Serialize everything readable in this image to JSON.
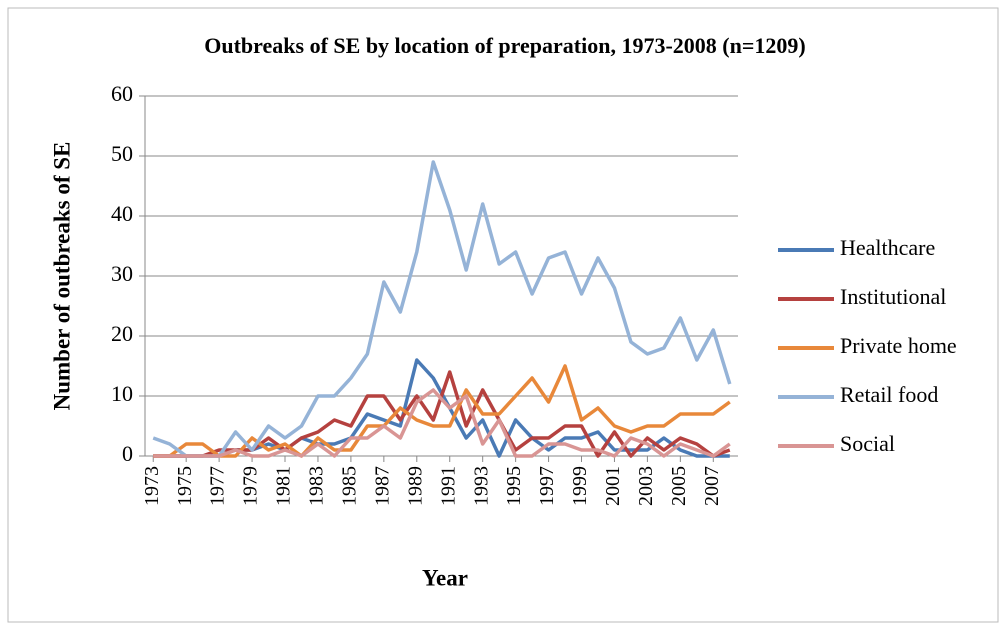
{
  "chart_data": {
    "type": "line",
    "title": "Outbreaks of SE by location of preparation, 1973-2008 (n=1209)",
    "x_label": "Year",
    "y_label": "Number of outbreaks of SE",
    "x": [
      1973,
      1974,
      1975,
      1976,
      1977,
      1978,
      1979,
      1980,
      1981,
      1982,
      1983,
      1984,
      1985,
      1986,
      1987,
      1988,
      1989,
      1990,
      1991,
      1992,
      1993,
      1994,
      1995,
      1996,
      1997,
      1998,
      1999,
      2000,
      2001,
      2002,
      2003,
      2004,
      2005,
      2006,
      2007,
      2008
    ],
    "xlim": [
      1972.5,
      2008.5
    ],
    "xticks": [
      1973,
      1975,
      1977,
      1979,
      1981,
      1983,
      1985,
      1987,
      1989,
      1991,
      1993,
      1995,
      1997,
      1999,
      2001,
      2003,
      2005,
      2007
    ],
    "ylim": [
      0,
      60
    ],
    "yticks": [
      0,
      10,
      20,
      30,
      40,
      50,
      60
    ],
    "grid": true,
    "legend": "right",
    "series": [
      {
        "name": "Healthcare",
        "color": "#4a7ab5",
        "values": [
          0,
          0,
          0,
          0,
          0,
          1,
          1,
          2,
          1,
          3,
          2,
          2,
          3,
          7,
          6,
          5,
          16,
          13,
          8,
          3,
          6,
          0,
          6,
          3,
          1,
          3,
          3,
          4,
          1,
          1,
          1,
          3,
          1,
          0,
          0,
          0
        ]
      },
      {
        "name": "Institutional",
        "color": "#b5413f",
        "values": [
          0,
          0,
          0,
          0,
          1,
          1,
          1,
          3,
          1,
          3,
          4,
          6,
          5,
          10,
          10,
          6,
          10,
          6,
          14,
          5,
          11,
          6,
          1,
          3,
          3,
          5,
          5,
          0,
          4,
          0,
          3,
          1,
          3,
          2,
          0,
          1
        ]
      },
      {
        "name": "Private home",
        "color": "#e8883a",
        "values": [
          0,
          0,
          2,
          2,
          0,
          0,
          3,
          1,
          2,
          0,
          3,
          1,
          1,
          5,
          5,
          8,
          6,
          5,
          5,
          11,
          7,
          7,
          10,
          13,
          9,
          15,
          6,
          8,
          5,
          4,
          5,
          5,
          7,
          7,
          7,
          9
        ]
      },
      {
        "name": "Retail food",
        "color": "#95b3d7",
        "values": [
          3,
          2,
          0,
          0,
          0,
          4,
          1,
          5,
          3,
          5,
          10,
          10,
          13,
          17,
          29,
          24,
          34,
          49,
          41,
          31,
          42,
          32,
          34,
          27,
          33,
          34,
          27,
          33,
          28,
          19,
          17,
          18,
          23,
          16,
          21,
          12
        ]
      },
      {
        "name": "Social",
        "color": "#d99594",
        "values": [
          0,
          0,
          0,
          0,
          0,
          1,
          0,
          0,
          1,
          0,
          2,
          0,
          3,
          3,
          5,
          3,
          9,
          11,
          8,
          10,
          2,
          6,
          0,
          0,
          2,
          2,
          1,
          1,
          0,
          3,
          2,
          0,
          2,
          1,
          0,
          2
        ]
      }
    ]
  }
}
